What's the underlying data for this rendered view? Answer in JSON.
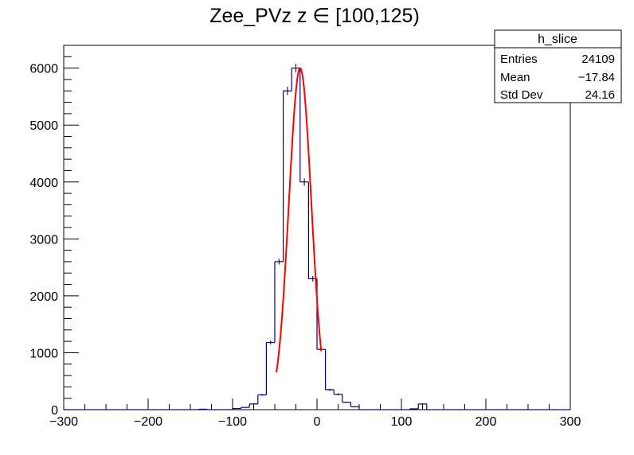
{
  "chart_data": {
    "type": "histogram",
    "title": "Zee_PVz z ∈ [100,125)",
    "xlabel": "",
    "ylabel": "",
    "xlim": [
      -300,
      300
    ],
    "ylim": [
      0,
      6400
    ],
    "x_ticks": [
      -300,
      -200,
      -100,
      0,
      100,
      200,
      300
    ],
    "x_tick_labels": [
      "−300",
      "−200",
      "−100",
      "0",
      "100",
      "200",
      "300"
    ],
    "y_ticks": [
      0,
      1000,
      2000,
      3000,
      4000,
      5000,
      6000
    ],
    "y_tick_labels": [
      "0",
      "1000",
      "2000",
      "3000",
      "4000",
      "5000",
      "6000"
    ],
    "grid": false,
    "histogram": {
      "name": "h_slice",
      "color": "#000080",
      "bin_edges": [
        -300,
        -290,
        -280,
        -270,
        -260,
        -250,
        -240,
        -230,
        -220,
        -210,
        -200,
        -190,
        -180,
        -170,
        -160,
        -150,
        -140,
        -130,
        -120,
        -110,
        -100,
        -90,
        -80,
        -70,
        -60,
        -50,
        -40,
        -30,
        -20,
        -10,
        0,
        10,
        20,
        30,
        40,
        50,
        60,
        70,
        80,
        90,
        100,
        110,
        120,
        130,
        140,
        150,
        160,
        170,
        180,
        190,
        200,
        210,
        220,
        230,
        240,
        250,
        260,
        270,
        280,
        290,
        300
      ],
      "counts": [
        0,
        0,
        0,
        0,
        0,
        0,
        0,
        0,
        0,
        0,
        0,
        0,
        0,
        0,
        0,
        0,
        8,
        0,
        0,
        0,
        20,
        40,
        100,
        260,
        1180,
        2600,
        5600,
        6000,
        4000,
        2300,
        1060,
        350,
        270,
        130,
        50,
        0,
        0,
        0,
        0,
        0,
        0,
        15,
        100,
        0,
        0,
        0,
        0,
        0,
        0,
        0,
        0,
        0,
        0,
        0,
        0,
        0,
        0,
        0,
        0,
        0
      ]
    },
    "fit": {
      "type": "gaussian",
      "color": "#ff0000",
      "amplitude": 6000,
      "mean": -20,
      "sigma": 13.3,
      "range": [
        -48,
        5
      ]
    },
    "stats_box": {
      "title": "h_slice",
      "rows": [
        {
          "label": "Entries",
          "value": "24109"
        },
        {
          "label": "Mean",
          "value": "−17.84"
        },
        {
          "label": "Std Dev",
          "value": "24.16"
        }
      ]
    }
  }
}
